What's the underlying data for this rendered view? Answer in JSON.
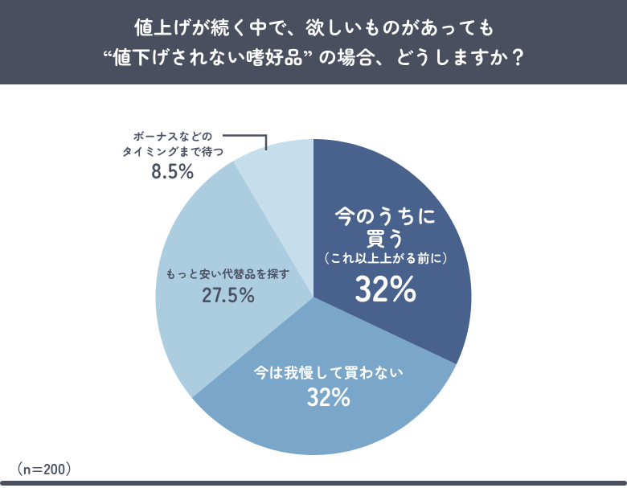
{
  "header": {
    "line1": "値上げが続く中で、欲しいものがあっても",
    "line2": "“値下げされない嗜好品” の場合、どうしますか？",
    "bg_color": "#4A4F5F",
    "text_color": "#FFFFFF"
  },
  "chart_data": {
    "type": "pie",
    "title": "値上げが続く中で、欲しいものがあっても “値下げされない嗜好品” の場合、どうしますか？",
    "start_angle": "12-o-clock",
    "direction": "clockwise",
    "slices": [
      {
        "name": "今のうちに買う（これ以上上がる前に）",
        "label_lines": [
          "今のうちに",
          "買う"
        ],
        "note": "（これ以上上がる前に）",
        "value": 32,
        "pct": "32%",
        "color": "#49628D"
      },
      {
        "name": "今は我慢して買わない",
        "label_lines": [
          "今は我慢して買わない"
        ],
        "value": 32,
        "pct": "32%",
        "color": "#7AA7C9"
      },
      {
        "name": "もっと安い代替品を探す",
        "label_lines": [
          "もっと安い代替品を探す"
        ],
        "value": 27.5,
        "pct": "27.5%",
        "color": "#ACCDDF"
      },
      {
        "name": "ボーナスなどのタイミングまで待つ",
        "label_lines": [
          "ボーナスなどの",
          "タイミングまで待つ"
        ],
        "value": 8.5,
        "pct": "8.5%",
        "color": "#C6DDEB"
      }
    ],
    "sample_note": "（n=200）",
    "legend_position": "on-slices",
    "accent_dark": "#4A4F5F"
  }
}
